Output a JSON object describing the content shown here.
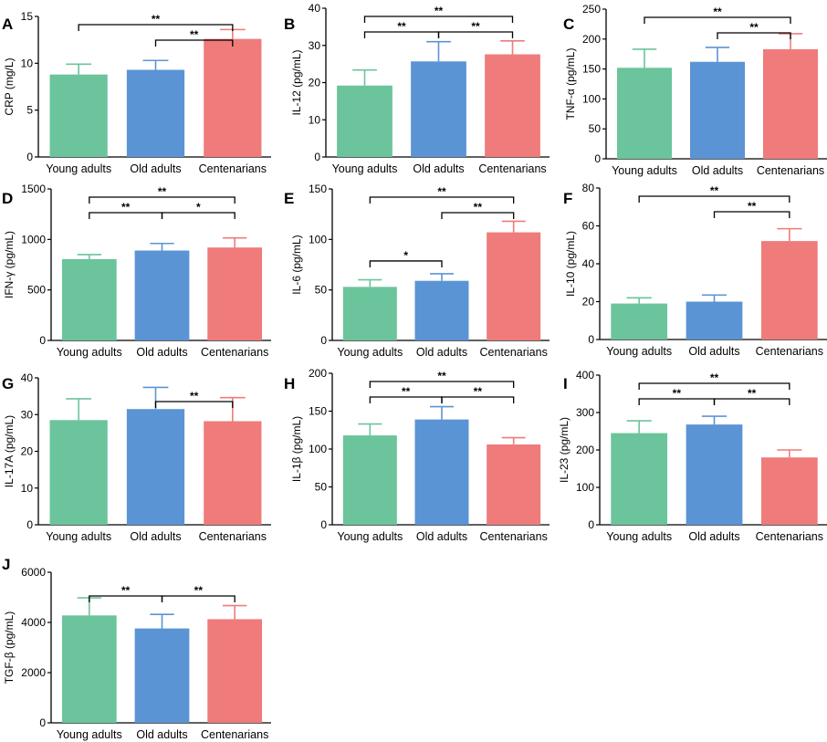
{
  "figure_colors": {
    "young": "#6bc49b",
    "old": "#5b94d4",
    "cent": "#ef7b7b",
    "axis": "#000000"
  },
  "chart_data": [
    {
      "type": "bar",
      "panel": "A",
      "ylabel": "CRP (mg/L)",
      "categories": [
        "Young adults",
        "Old adults",
        "Centenarians"
      ],
      "values": [
        8.8,
        9.3,
        12.6
      ],
      "errors": [
        1.1,
        1.0,
        1.0
      ],
      "ylim": [
        0,
        15
      ],
      "yticks": [
        0,
        5,
        10,
        15
      ],
      "significance": [
        {
          "from": 0,
          "to": 2,
          "label": "**",
          "level": 2
        },
        {
          "from": 1,
          "to": 2,
          "label": "**",
          "level": 1
        }
      ]
    },
    {
      "type": "bar",
      "panel": "B",
      "ylabel": "IL-12 (pg/mL)",
      "categories": [
        "Young adults",
        "Old adults",
        "Centenarians"
      ],
      "values": [
        19.2,
        25.7,
        27.6
      ],
      "errors": [
        4.2,
        5.3,
        3.6
      ],
      "ylim": [
        0,
        40
      ],
      "yticks": [
        0,
        10,
        20,
        30,
        40
      ],
      "significance": [
        {
          "from": 0,
          "to": 2,
          "label": "**",
          "level": 2
        },
        {
          "from": 0,
          "to": 1,
          "label": "**",
          "level": 1
        },
        {
          "from": 1,
          "to": 2,
          "label": "**",
          "level": 1
        }
      ]
    },
    {
      "type": "bar",
      "panel": "C",
      "ylabel": "TNF-α (pg/mL)",
      "categories": [
        "Young adults",
        "Old adults",
        "Centenarians"
      ],
      "values": [
        152,
        162,
        183
      ],
      "errors": [
        31,
        24,
        26
      ],
      "ylim": [
        0,
        250
      ],
      "yticks": [
        0,
        50,
        100,
        150,
        200,
        250
      ],
      "significance": [
        {
          "from": 0,
          "to": 2,
          "label": "**",
          "level": 2
        },
        {
          "from": 1,
          "to": 2,
          "label": "**",
          "level": 1
        }
      ]
    },
    {
      "type": "bar",
      "panel": "D",
      "ylabel": "IFN-γ (pg/mL)",
      "categories": [
        "Young adults",
        "Old adults",
        "Centenarians"
      ],
      "values": [
        805,
        890,
        920
      ],
      "errors": [
        45,
        70,
        95
      ],
      "ylim": [
        0,
        1500
      ],
      "yticks": [
        0,
        500,
        1000,
        1500
      ],
      "significance": [
        {
          "from": 0,
          "to": 2,
          "label": "**",
          "level": 2
        },
        {
          "from": 0,
          "to": 1,
          "label": "**",
          "level": 1
        },
        {
          "from": 1,
          "to": 2,
          "label": "*",
          "level": 1
        }
      ]
    },
    {
      "type": "bar",
      "panel": "E",
      "ylabel": "IL-6 (pg/mL)",
      "categories": [
        "Young adults",
        "Old adults",
        "Centenarians"
      ],
      "values": [
        53,
        59,
        107
      ],
      "errors": [
        7,
        7,
        11
      ],
      "ylim": [
        0,
        150
      ],
      "yticks": [
        0,
        50,
        100,
        150
      ],
      "significance": [
        {
          "from": 0,
          "to": 2,
          "label": "**",
          "level": 2
        },
        {
          "from": 1,
          "to": 2,
          "label": "**",
          "level": 1
        },
        {
          "from": 0,
          "to": 1,
          "label": "*",
          "level": 0
        }
      ]
    },
    {
      "type": "bar",
      "panel": "F",
      "ylabel": "IL-10 (pg/mL)",
      "categories": [
        "Young adults",
        "Old adults",
        "Centenarians"
      ],
      "values": [
        19,
        20,
        52
      ],
      "errors": [
        3,
        3.5,
        6.5
      ],
      "ylim": [
        0,
        80
      ],
      "yticks": [
        0,
        20,
        40,
        60,
        80
      ],
      "significance": [
        {
          "from": 0,
          "to": 2,
          "label": "**",
          "level": 2
        },
        {
          "from": 1,
          "to": 2,
          "label": "**",
          "level": 1
        }
      ]
    },
    {
      "type": "bar",
      "panel": "G",
      "ylabel": "IL-17A (pg/mL)",
      "categories": [
        "Young adults",
        "Old adults",
        "Centenarians"
      ],
      "values": [
        28.5,
        31.5,
        28.2
      ],
      "errors": [
        5.8,
        5.9,
        6.4
      ],
      "ylim": [
        0,
        40
      ],
      "yticks": [
        0,
        10,
        20,
        30,
        40
      ],
      "significance": [
        {
          "from": 1,
          "to": 2,
          "label": "**",
          "level": 1
        }
      ]
    },
    {
      "type": "bar",
      "panel": "H",
      "ylabel": "IL-1β (pg/mL)",
      "categories": [
        "Young adults",
        "Old adults",
        "Centenarians"
      ],
      "values": [
        118,
        139,
        106
      ],
      "errors": [
        15,
        17,
        9
      ],
      "ylim": [
        0,
        200
      ],
      "yticks": [
        0,
        50,
        100,
        150,
        200
      ],
      "significance": [
        {
          "from": 0,
          "to": 2,
          "label": "**",
          "level": 2
        },
        {
          "from": 0,
          "to": 1,
          "label": "**",
          "level": 1
        },
        {
          "from": 1,
          "to": 2,
          "label": "**",
          "level": 1
        }
      ]
    },
    {
      "type": "bar",
      "panel": "I",
      "ylabel": "IL-23 (pg/mL)",
      "categories": [
        "Young adults",
        "Old adults",
        "Centenarians"
      ],
      "values": [
        245,
        268,
        180
      ],
      "errors": [
        33,
        22,
        20
      ],
      "ylim": [
        0,
        400
      ],
      "yticks": [
        0,
        100,
        200,
        300,
        400
      ],
      "significance": [
        {
          "from": 0,
          "to": 2,
          "label": "**",
          "level": 2
        },
        {
          "from": 0,
          "to": 1,
          "label": "**",
          "level": 1
        },
        {
          "from": 1,
          "to": 2,
          "label": "**",
          "level": 1
        }
      ]
    },
    {
      "type": "bar",
      "panel": "J",
      "ylabel": "TGF-β (pg/mL)",
      "categories": [
        "Young adults",
        "Old adults",
        "Centenarians"
      ],
      "values": [
        4280,
        3760,
        4130
      ],
      "errors": [
        700,
        560,
        540
      ],
      "ylim": [
        0,
        6000
      ],
      "yticks": [
        0,
        2000,
        4000,
        6000
      ],
      "significance": [
        {
          "from": 0,
          "to": 1,
          "label": "**",
          "level": 1
        },
        {
          "from": 1,
          "to": 2,
          "label": "**",
          "level": 1
        }
      ]
    }
  ]
}
